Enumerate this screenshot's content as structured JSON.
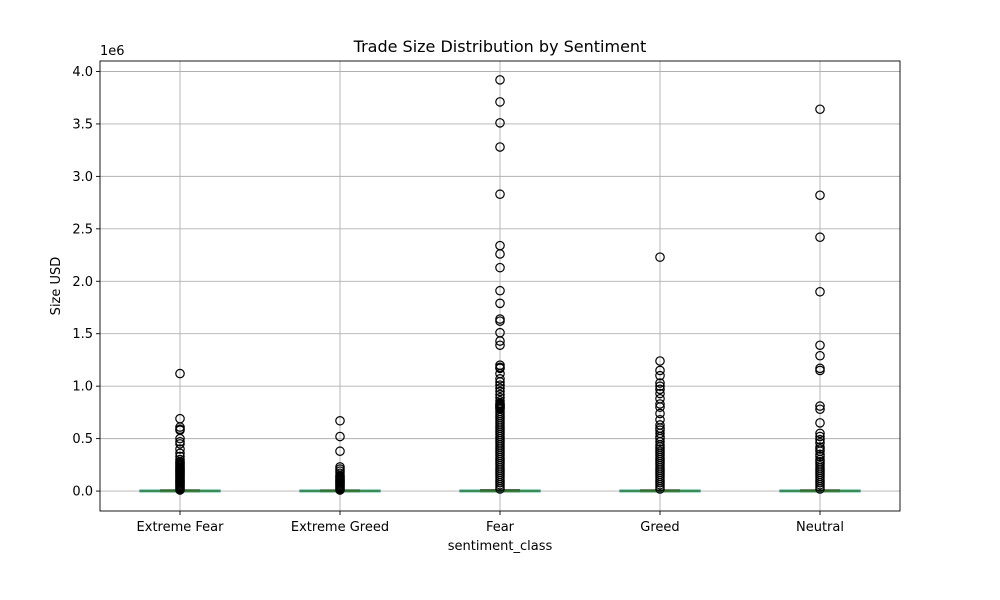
{
  "chart_data": {
    "type": "box",
    "title": "Trade Size Distribution by Sentiment",
    "xlabel": "sentiment_class",
    "ylabel": "Size USD",
    "y_offset_label": "1e6",
    "ylim": [
      -0.19,
      4.1
    ],
    "y_unit_scale": 1000000,
    "y_ticks": [
      0.0,
      0.5,
      1.0,
      1.5,
      2.0,
      2.5,
      3.0,
      3.5,
      4.0
    ],
    "y_tick_labels": [
      "0.0",
      "0.5",
      "1.0",
      "1.5",
      "2.0",
      "2.5",
      "3.0",
      "3.5",
      "4.0"
    ],
    "grid": true,
    "categories": [
      "Extreme Fear",
      "Extreme Greed",
      "Fear",
      "Greed",
      "Neutral"
    ],
    "series": [
      {
        "name": "Extreme Fear",
        "q1": 0.0,
        "median": 0.0,
        "q3": 0.002,
        "whisker_low": 0.0,
        "whisker_high": 0.005,
        "fliers": [
          1.12,
          0.69,
          0.61,
          0.59,
          0.58,
          0.5,
          0.47,
          0.45,
          0.4,
          0.36,
          0.33,
          0.3,
          0.28,
          0.27,
          0.26,
          0.25,
          0.24,
          0.23,
          0.22,
          0.21,
          0.2,
          0.19,
          0.18,
          0.17,
          0.16,
          0.15,
          0.14,
          0.13,
          0.12,
          0.11,
          0.1,
          0.09,
          0.08,
          0.07,
          0.06,
          0.05,
          0.04,
          0.03,
          0.02,
          0.01
        ]
      },
      {
        "name": "Extreme Greed",
        "q1": 0.0,
        "median": 0.0,
        "q3": 0.002,
        "whisker_low": 0.0,
        "whisker_high": 0.004,
        "fliers": [
          0.67,
          0.52,
          0.38,
          0.23,
          0.21,
          0.19,
          0.17,
          0.15,
          0.14,
          0.13,
          0.12,
          0.11,
          0.1,
          0.09,
          0.08,
          0.07,
          0.06,
          0.05,
          0.04,
          0.03,
          0.02,
          0.01
        ]
      },
      {
        "name": "Fear",
        "q1": 0.0,
        "median": 0.0,
        "q3": 0.002,
        "whisker_low": 0.0,
        "whisker_high": 0.006,
        "fliers": [
          3.92,
          3.71,
          3.51,
          3.28,
          2.83,
          2.34,
          2.26,
          2.13,
          1.91,
          1.79,
          1.64,
          1.62,
          1.51,
          1.43,
          1.39,
          1.2,
          1.18,
          1.17,
          1.12,
          1.07,
          1.04,
          1.01,
          0.98,
          0.95,
          0.92,
          0.89,
          0.86,
          0.84,
          0.83,
          0.82,
          0.81,
          0.8,
          0.79,
          0.78,
          0.76,
          0.74,
          0.72,
          0.7,
          0.68,
          0.66,
          0.64,
          0.62,
          0.6,
          0.58,
          0.56,
          0.54,
          0.52,
          0.5,
          0.48,
          0.46,
          0.44,
          0.42,
          0.4,
          0.38,
          0.36,
          0.34,
          0.32,
          0.3,
          0.28,
          0.26,
          0.24,
          0.22,
          0.2,
          0.18,
          0.16,
          0.14,
          0.12,
          0.1,
          0.08,
          0.06,
          0.04,
          0.02
        ]
      },
      {
        "name": "Greed",
        "q1": 0.0,
        "median": 0.0,
        "q3": 0.002,
        "whisker_low": 0.0,
        "whisker_high": 0.005,
        "fliers": [
          2.23,
          1.24,
          1.15,
          1.1,
          1.03,
          1.0,
          0.97,
          0.93,
          0.88,
          0.83,
          0.8,
          0.74,
          0.68,
          0.63,
          0.6,
          0.58,
          0.55,
          0.52,
          0.5,
          0.47,
          0.44,
          0.42,
          0.4,
          0.38,
          0.36,
          0.34,
          0.32,
          0.3,
          0.28,
          0.26,
          0.24,
          0.22,
          0.2,
          0.18,
          0.16,
          0.14,
          0.12,
          0.1,
          0.08,
          0.06,
          0.04,
          0.02
        ]
      },
      {
        "name": "Neutral",
        "q1": 0.0,
        "median": 0.0,
        "q3": 0.002,
        "whisker_low": 0.0,
        "whisker_high": 0.005,
        "fliers": [
          3.64,
          2.82,
          2.42,
          1.9,
          1.39,
          1.29,
          1.17,
          1.15,
          0.81,
          0.78,
          0.65,
          0.55,
          0.52,
          0.49,
          0.46,
          0.42,
          0.4,
          0.38,
          0.35,
          0.33,
          0.3,
          0.28,
          0.26,
          0.24,
          0.22,
          0.2,
          0.18,
          0.16,
          0.14,
          0.12,
          0.1,
          0.08,
          0.06,
          0.04,
          0.02
        ]
      }
    ]
  }
}
